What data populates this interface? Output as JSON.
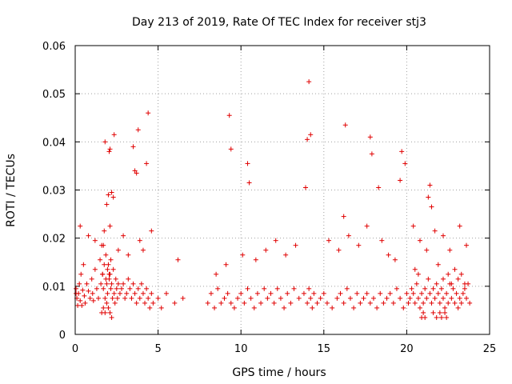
{
  "chart_data": {
    "type": "scatter",
    "title": "Day 213 of 2019, Rate Of TEC Index for receiver stj3",
    "xlabel": "GPS time / hours",
    "ylabel": "ROTI / TECUs",
    "xlim": [
      0,
      25
    ],
    "ylim": [
      0,
      0.06
    ],
    "xticks": [
      0,
      5,
      10,
      15,
      20,
      25
    ],
    "yticks": [
      0,
      0.01,
      0.02,
      0.03,
      0.04,
      0.05,
      0.06
    ],
    "xtick_labels": [
      "0",
      "5",
      "10",
      "15",
      "20",
      "25"
    ],
    "ytick_labels": [
      "0",
      "0.01",
      "0.02",
      "0.03",
      "0.04",
      "0.05",
      "0.06"
    ],
    "grid": true,
    "marker": "+",
    "color": "#e00000",
    "series": [
      {
        "name": "ROTI",
        "x": [
          0.05,
          0.1,
          0.15,
          0.2,
          0.25,
          0.3,
          0.35,
          0.4,
          0.45,
          0.5,
          0.55,
          0.6,
          0.7,
          0.8,
          0.9,
          1.0,
          1.05,
          1.1,
          1.2,
          1.3,
          1.4,
          1.5,
          1.55,
          1.6,
          1.65,
          1.7,
          1.75,
          1.8,
          1.85,
          1.9,
          1.95,
          2.0,
          2.05,
          2.1,
          2.15,
          2.2,
          2.25,
          2.3,
          2.35,
          2.4,
          2.45,
          2.5,
          2.55,
          2.6,
          2.7,
          2.8,
          2.9,
          3.0,
          3.1,
          3.2,
          3.3,
          3.4,
          3.5,
          3.6,
          3.7,
          3.8,
          3.9,
          4.0,
          4.1,
          4.2,
          4.3,
          4.4,
          4.5,
          4.6,
          4.7,
          5.0,
          5.2,
          5.5,
          6.0,
          6.5,
          8.0,
          8.2,
          8.4,
          8.6,
          8.8,
          9.0,
          9.2,
          9.4,
          9.6,
          9.8,
          10.0,
          10.2,
          10.4,
          10.6,
          10.8,
          11.0,
          11.2,
          11.4,
          11.6,
          11.8,
          12.0,
          12.2,
          12.4,
          12.6,
          12.8,
          13.0,
          13.2,
          13.5,
          13.8,
          14.0,
          14.1,
          14.2,
          14.3,
          14.4,
          14.6,
          14.8,
          15.0,
          15.2,
          15.5,
          15.8,
          16.0,
          16.2,
          16.4,
          16.6,
          16.8,
          17.0,
          17.2,
          17.4,
          17.6,
          17.8,
          18.0,
          18.2,
          18.4,
          18.6,
          18.8,
          19.0,
          19.2,
          19.4,
          19.6,
          19.8,
          20.0,
          20.1,
          20.2,
          20.3,
          20.4,
          20.5,
          20.6,
          20.7,
          20.8,
          20.9,
          21.0,
          21.1,
          21.2,
          21.3,
          21.4,
          21.5,
          21.6,
          21.7,
          21.8,
          21.9,
          22.0,
          22.1,
          22.2,
          22.3,
          22.4,
          22.5,
          22.6,
          22.7,
          22.8,
          22.9,
          23.0,
          23.1,
          23.2,
          23.3,
          23.4,
          23.5,
          23.6,
          23.7,
          23.8,
          0.05,
          1.8,
          1.9,
          2.0,
          2.05,
          2.1,
          2.2,
          2.3,
          2.35,
          3.5,
          3.6,
          3.7,
          3.8,
          4.3,
          4.4,
          9.3,
          9.4,
          10.4,
          10.5,
          13.9,
          14.0,
          14.1,
          14.2,
          16.2,
          16.3,
          17.8,
          17.9,
          18.3,
          19.6,
          19.7,
          19.9,
          21.3,
          21.4,
          21.5,
          0.3,
          0.8,
          1.2,
          1.7,
          2.1,
          2.6,
          2.9,
          3.2,
          3.9,
          4.1,
          4.6,
          6.2,
          8.5,
          9.1,
          10.1,
          10.9,
          11.5,
          12.1,
          12.7,
          13.3,
          15.3,
          15.9,
          16.5,
          17.1,
          17.6,
          18.5,
          18.9,
          19.3,
          20.4,
          20.8,
          21.2,
          21.7,
          22.2,
          22.6,
          23.2,
          23.6,
          1.6,
          1.7,
          1.8,
          1.9,
          2.0,
          2.1,
          2.2,
          1.65,
          1.75,
          1.85,
          1.95,
          2.05,
          2.15,
          20.9,
          21.0,
          21.1,
          21.6,
          21.8,
          22.0,
          22.1,
          22.3,
          22.4,
          20.5,
          20.7,
          21.9,
          22.2,
          22.5,
          22.7,
          22.9,
          23.1,
          23.3,
          23.5
        ],
        "y": [
          0.0095,
          0.0075,
          0.006,
          0.0085,
          0.0105,
          0.007,
          0.0125,
          0.006,
          0.0092,
          0.0145,
          0.008,
          0.0065,
          0.0105,
          0.009,
          0.0075,
          0.0115,
          0.0085,
          0.007,
          0.0135,
          0.0095,
          0.0075,
          0.0155,
          0.0105,
          0.0185,
          0.0125,
          0.0095,
          0.0215,
          0.0075,
          0.0165,
          0.0105,
          0.0085,
          0.0145,
          0.0115,
          0.0125,
          0.0095,
          0.0105,
          0.0075,
          0.0135,
          0.0085,
          0.0065,
          0.0115,
          0.0095,
          0.0075,
          0.0105,
          0.0085,
          0.0095,
          0.0105,
          0.0075,
          0.0085,
          0.0115,
          0.0095,
          0.0075,
          0.0105,
          0.0085,
          0.0065,
          0.0095,
          0.0075,
          0.0105,
          0.0085,
          0.0065,
          0.0095,
          0.0075,
          0.0055,
          0.0085,
          0.0065,
          0.0075,
          0.0055,
          0.0085,
          0.0065,
          0.0075,
          0.0065,
          0.0085,
          0.0055,
          0.0095,
          0.0065,
          0.0075,
          0.0085,
          0.0065,
          0.0055,
          0.0075,
          0.0085,
          0.0065,
          0.0095,
          0.0075,
          0.0055,
          0.0085,
          0.0065,
          0.0095,
          0.0075,
          0.0085,
          0.0065,
          0.0095,
          0.0075,
          0.0055,
          0.0085,
          0.0065,
          0.0095,
          0.0075,
          0.0085,
          0.0065,
          0.0095,
          0.0075,
          0.0055,
          0.0085,
          0.0065,
          0.0075,
          0.0085,
          0.0065,
          0.0055,
          0.0075,
          0.0085,
          0.0065,
          0.0095,
          0.0075,
          0.0055,
          0.0085,
          0.0065,
          0.0075,
          0.0085,
          0.0065,
          0.0075,
          0.0055,
          0.0085,
          0.0065,
          0.0075,
          0.0085,
          0.0065,
          0.0095,
          0.0075,
          0.0055,
          0.0085,
          0.0065,
          0.0075,
          0.0095,
          0.0085,
          0.0065,
          0.0105,
          0.0075,
          0.0055,
          0.0085,
          0.0065,
          0.0095,
          0.0075,
          0.0115,
          0.0085,
          0.0065,
          0.0095,
          0.0075,
          0.0105,
          0.0085,
          0.0065,
          0.0095,
          0.0075,
          0.0055,
          0.0085,
          0.0065,
          0.0105,
          0.0075,
          0.0095,
          0.0065,
          0.0085,
          0.0055,
          0.0075,
          0.0065,
          0.0085,
          0.0095,
          0.0075,
          0.0105,
          0.0065,
          0.0085,
          0.04,
          0.027,
          0.029,
          0.038,
          0.0385,
          0.0295,
          0.0285,
          0.0415,
          0.039,
          0.034,
          0.0335,
          0.0425,
          0.0355,
          0.046,
          0.0455,
          0.0385,
          0.0355,
          0.0315,
          0.0305,
          0.0405,
          0.0525,
          0.0415,
          0.0245,
          0.0435,
          0.041,
          0.0375,
          0.0305,
          0.032,
          0.038,
          0.0355,
          0.0285,
          0.031,
          0.0265,
          0.0225,
          0.0205,
          0.0195,
          0.0185,
          0.0225,
          0.0175,
          0.0205,
          0.0165,
          0.0195,
          0.0175,
          0.0215,
          0.0155,
          0.0125,
          0.0145,
          0.0165,
          0.0155,
          0.0175,
          0.0195,
          0.0165,
          0.0185,
          0.0195,
          0.0175,
          0.0205,
          0.0185,
          0.0225,
          0.0195,
          0.0165,
          0.0155,
          0.0225,
          0.0195,
          0.0175,
          0.0215,
          0.0205,
          0.0175,
          0.0225,
          0.0185,
          0.0045,
          0.0055,
          0.0045,
          0.0065,
          0.0055,
          0.0045,
          0.0035,
          0.0125,
          0.0145,
          0.0115,
          0.0135,
          0.0125,
          0.0155,
          0.0035,
          0.0045,
          0.0035,
          0.0045,
          0.0035,
          0.0045,
          0.0035,
          0.0045,
          0.0035,
          0.0135,
          0.0125,
          0.0145,
          0.0115,
          0.0125,
          0.0105,
          0.0135,
          0.0115,
          0.0125,
          0.0105
        ]
      }
    ]
  }
}
